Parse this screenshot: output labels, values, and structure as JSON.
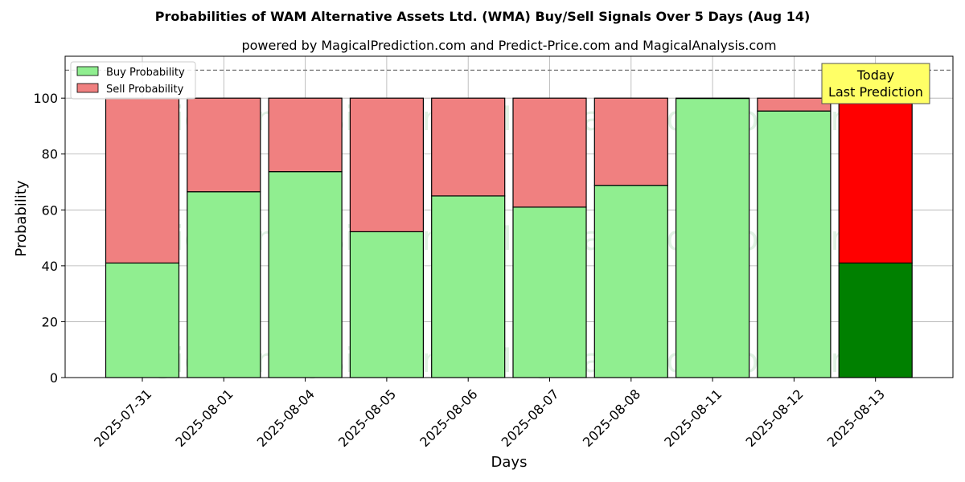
{
  "chart_data": {
    "type": "bar",
    "stacked": true,
    "title": "Probabilities of WAM Alternative Assets Ltd. (WMA) Buy/Sell Signals Over 5 Days (Aug 14)",
    "subtitle": "powered by MagicalPrediction.com and Predict-Price.com and MagicalAnalysis.com",
    "xlabel": "Days",
    "ylabel": "Probability",
    "ylim": [
      0,
      115
    ],
    "yticks": [
      0,
      20,
      40,
      60,
      80,
      100
    ],
    "reference_line": 110,
    "grid": true,
    "legend_position": "top-left",
    "categories": [
      "2025-07-31",
      "2025-08-01",
      "2025-08-04",
      "2025-08-05",
      "2025-08-06",
      "2025-08-07",
      "2025-08-08",
      "2025-08-11",
      "2025-08-12",
      "2025-08-13"
    ],
    "series": [
      {
        "name": "Buy Probability",
        "color": "#90ee90",
        "highlight_color": "#008000",
        "values": [
          41.0,
          66.5,
          73.7,
          52.2,
          65.0,
          61.0,
          68.8,
          99.9,
          95.4,
          41.0
        ]
      },
      {
        "name": "Sell Probability",
        "color": "#f08080",
        "highlight_color": "#ff0000",
        "values": [
          59.0,
          33.5,
          26.3,
          47.8,
          35.0,
          39.0,
          31.2,
          0.1,
          4.6,
          59.0
        ]
      }
    ],
    "highlight_index": 9,
    "annotation": {
      "line1": "Today",
      "line2": "Last Prediction",
      "color": "#ffff66"
    },
    "watermarks": [
      "MagicalAnalysis.com",
      "MagicalPrediction.com"
    ]
  }
}
